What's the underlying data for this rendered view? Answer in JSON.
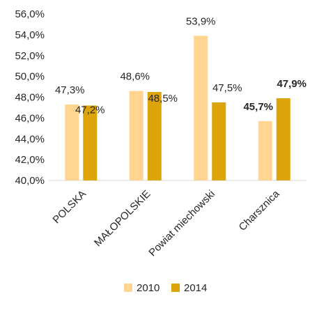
{
  "chart_data": {
    "type": "bar",
    "categories": [
      "POLSKA",
      "MAŁOPOLSKIE",
      "Powiat miechowski",
      "Charsznica"
    ],
    "series": [
      {
        "name": "2010",
        "values": [
          47.3,
          48.6,
          53.9,
          45.7
        ],
        "labels": [
          "47,3%",
          "48,6%",
          "53,9%",
          "45,7%"
        ],
        "color": "#FFD591"
      },
      {
        "name": "2014",
        "values": [
          47.2,
          48.5,
          47.5,
          47.9
        ],
        "labels": [
          "47,2%",
          "48,5%",
          "47,5%",
          "47,9%"
        ],
        "color": "#DDA40A"
      }
    ],
    "bold_category": "Charsznica",
    "ylim": [
      40,
      56
    ],
    "yticks": [
      40,
      42,
      44,
      46,
      48,
      50,
      52,
      54,
      56
    ],
    "ytick_labels": [
      "40,0%",
      "42,0%",
      "44,0%",
      "46,0%",
      "48,0%",
      "50,0%",
      "52,0%",
      "54,0%",
      "56,0%"
    ],
    "grid": false,
    "legend": "bottom",
    "title": "",
    "xlabel": "",
    "ylabel": ""
  }
}
